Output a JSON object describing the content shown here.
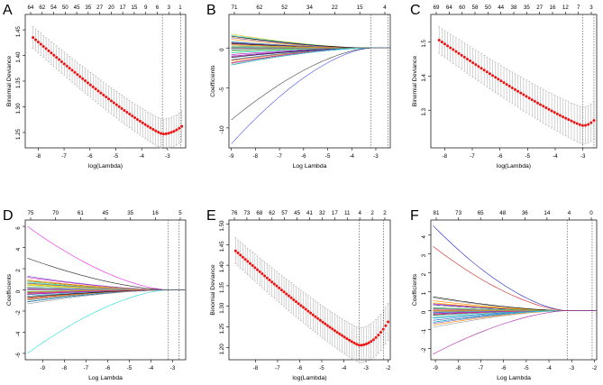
{
  "figure": {
    "panel_labels": [
      "A",
      "B",
      "C",
      "D",
      "E",
      "F"
    ]
  },
  "chart_data": [
    {
      "panel": "A",
      "type": "cv_deviance",
      "xlabel": "log(Lambda)",
      "ylabel": "Binomial Deviance",
      "xlim": [
        -8.5,
        -2.3
      ],
      "ylim": [
        1.22,
        1.48
      ],
      "xticks": [
        -8,
        -7,
        -6,
        -5,
        -4,
        -3
      ],
      "yticks": [
        1.25,
        1.3,
        1.35,
        1.4,
        1.45
      ],
      "top_ticks": [
        "64",
        "62",
        "54",
        "50",
        "45",
        "35",
        "27",
        "20",
        "17",
        "15",
        "9",
        "6",
        "3",
        "1"
      ],
      "vlines": [
        -3.2,
        -2.5
      ],
      "curve": {
        "start": 1.435,
        "min": 1.247,
        "end": 1.262,
        "x_min": -3.2,
        "error": 0.03,
        "points": 58,
        "x_start": -8.2,
        "x_end": -2.45
      }
    },
    {
      "panel": "B",
      "type": "coef_path",
      "xlabel": "Log Lambda",
      "ylabel": "Coefficients",
      "xlim": [
        -9.1,
        -2.4
      ],
      "ylim": [
        -12.5,
        4.2
      ],
      "xticks": [
        -9,
        -8,
        -7,
        -6,
        -5,
        -4,
        -3
      ],
      "yticks": [
        -10,
        -5,
        0
      ],
      "top_ticks": [
        "71",
        "62",
        "52",
        "34",
        "22",
        "15",
        "4"
      ],
      "vlines": [
        -3.2,
        -2.5
      ],
      "n_paths": 45,
      "spread": 3.2,
      "outlier_paths": [
        {
          "end": -12.0,
          "color": "#4455ee"
        },
        {
          "end": -9.0,
          "color": "#444444"
        }
      ]
    },
    {
      "panel": "C",
      "type": "cv_deviance",
      "xlabel": "log(Lambda)",
      "ylabel": "Binomial Deviance",
      "xlim": [
        -8.5,
        -2.5
      ],
      "ylim": [
        1.19,
        1.58
      ],
      "xticks": [
        -8,
        -7,
        -6,
        -5,
        -4,
        -3
      ],
      "yticks": [
        1.3,
        1.4,
        1.5
      ],
      "top_ticks": [
        "69",
        "64",
        "60",
        "58",
        "50",
        "44",
        "38",
        "35",
        "27",
        "16",
        "12",
        "7",
        "3"
      ],
      "vlines": [
        -3.0,
        -2.6
      ],
      "curve": {
        "start": 1.505,
        "min": 1.255,
        "end": 1.27,
        "x_min": -3.0,
        "error": 0.055,
        "points": 56,
        "x_start": -8.2,
        "x_end": -2.6
      }
    },
    {
      "panel": "D",
      "type": "coef_path",
      "xlabel": "Log Lambda",
      "ylabel": "Coefficients",
      "xlim": [
        -9.8,
        -2.4
      ],
      "ylim": [
        -6.6,
        6.6
      ],
      "xticks": [
        -9,
        -8,
        -7,
        -6,
        -5,
        -4,
        -3
      ],
      "yticks": [
        -6,
        -4,
        -2,
        0,
        2,
        4,
        6
      ],
      "top_ticks": [
        "75",
        "70",
        "61",
        "45",
        "35",
        "16",
        "5"
      ],
      "vlines": [
        -3.2,
        -2.7
      ],
      "n_paths": 50,
      "spread": 1.6,
      "outlier_paths": [
        {
          "end": 6.0,
          "color": "#ee22ee"
        },
        {
          "end": -6.0,
          "color": "#22dddd"
        },
        {
          "end": 3.0,
          "color": "#222222"
        }
      ]
    },
    {
      "panel": "E",
      "type": "cv_deviance",
      "xlabel": "log(Lambda)",
      "ylabel": "Binomial Deviance",
      "xlim": [
        -9.2,
        -1.9
      ],
      "ylim": [
        1.17,
        1.51
      ],
      "xticks": [
        -8,
        -7,
        -6,
        -5,
        -4,
        -3,
        -2
      ],
      "yticks": [
        1.2,
        1.25,
        1.3,
        1.35,
        1.4,
        1.45,
        1.5
      ],
      "top_ticks": [
        "76",
        "73",
        "68",
        "62",
        "57",
        "45",
        "41",
        "32",
        "17",
        "11",
        "4",
        "2",
        "2"
      ],
      "vlines": [
        -3.3,
        -2.2
      ],
      "curve": {
        "start": 1.435,
        "min": 1.205,
        "end": 1.262,
        "x_min": -3.3,
        "error": 0.045,
        "points": 64,
        "x_start": -8.9,
        "x_end": -2.0
      }
    },
    {
      "panel": "F",
      "type": "coef_path",
      "xlabel": "Log Lambda",
      "ylabel": "Coefficients",
      "xlim": [
        -9.2,
        -1.9
      ],
      "ylim": [
        -2.6,
        4.8
      ],
      "xticks": [
        -9,
        -8,
        -7,
        -6,
        -5,
        -4,
        -3,
        -2
      ],
      "yticks": [
        -2,
        -1,
        0,
        1,
        2,
        3,
        4
      ],
      "top_ticks": [
        "81",
        "73",
        "65",
        "48",
        "36",
        "14",
        "4",
        "0"
      ],
      "vlines": [
        -3.2,
        -2.1
      ],
      "n_paths": 55,
      "spread": 1.1,
      "outlier_paths": [
        {
          "end": 4.5,
          "color": "#2222cc"
        },
        {
          "end": 3.4,
          "color": "#cc2222"
        },
        {
          "end": -2.3,
          "color": "#aa22aa"
        }
      ]
    }
  ]
}
